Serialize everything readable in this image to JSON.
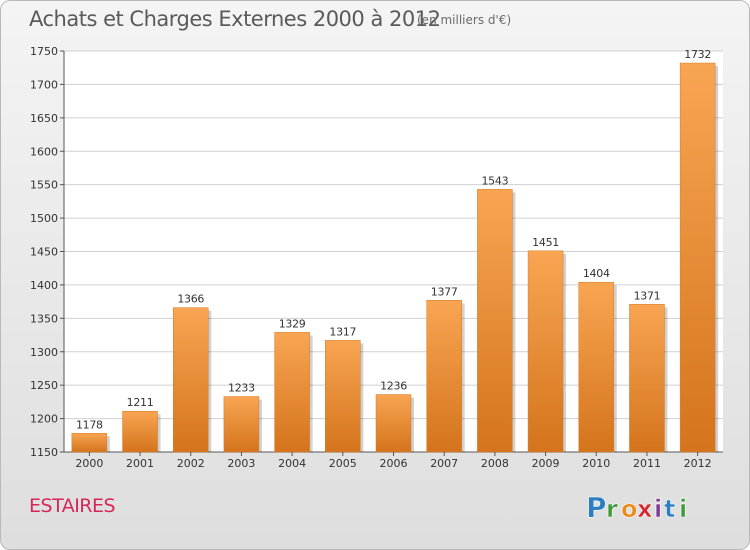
{
  "header": {
    "title": "Achats et Charges Externes 2000 à 2012",
    "subtitle": "(en milliers d'€)"
  },
  "footer": {
    "commune": "ESTAIRES",
    "logo_text": "Proxiti",
    "logo_letters": [
      "P",
      "r",
      "o",
      "x",
      "i",
      "t",
      "i"
    ],
    "logo_colors": [
      "#2b7ec1",
      "#3e9a3a",
      "#e98a1b",
      "#d7262a",
      "#7d3c98",
      "#2b7ec1",
      "#3e9a3a"
    ]
  },
  "chart_data": {
    "type": "bar",
    "categories": [
      "2000",
      "2001",
      "2002",
      "2003",
      "2004",
      "2005",
      "2006",
      "2007",
      "2008",
      "2009",
      "2010",
      "2011",
      "2012"
    ],
    "values": [
      1178,
      1211,
      1366,
      1233,
      1329,
      1317,
      1236,
      1377,
      1543,
      1451,
      1404,
      1371,
      1732
    ],
    "ylim": [
      1150,
      1750
    ],
    "yticks": [
      1150,
      1200,
      1250,
      1300,
      1350,
      1400,
      1450,
      1500,
      1550,
      1600,
      1650,
      1700,
      1750
    ],
    "grid": true,
    "bar_color": "#f0913a",
    "bar_color_dark": "#d4741c",
    "text_color": "#333333"
  }
}
